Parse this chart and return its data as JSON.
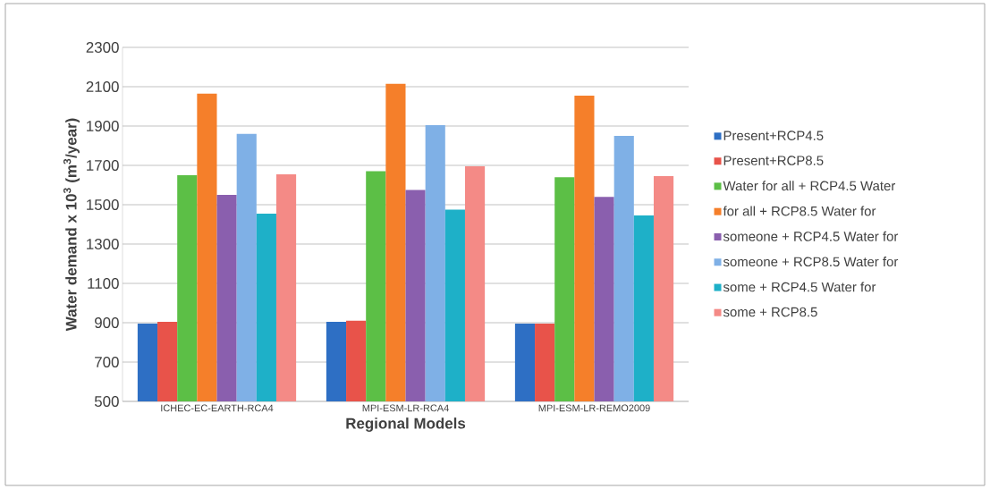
{
  "chart_data": {
    "type": "bar",
    "xlabel": "Regional Models",
    "ylabel": "Water demand  x 10$^{3}$ (m$^{3}$/year)",
    "categories": [
      "ICHEC-EC-EARTH-RCA4",
      "MPI-ESM-LR-RCA4",
      "MPI-ESM-LR-REMO2009"
    ],
    "series": [
      {
        "name": "Present+RCP4.5",
        "color": "#2e6fc4",
        "values": [
          895,
          905,
          895
        ]
      },
      {
        "name": "Present+RCP8.5",
        "color": "#e8534a",
        "values": [
          905,
          910,
          895
        ]
      },
      {
        "name": "Water for all + RCP4.5 Water",
        "color": "#5cbf46",
        "values": [
          1650,
          1670,
          1640
        ]
      },
      {
        "name": "for all + RCP8.5 Water for",
        "color": "#f57f2a",
        "values": [
          2065,
          2115,
          2055
        ]
      },
      {
        "name": "someone + RCP4.5 Water for",
        "color": "#8a5fae",
        "values": [
          1550,
          1575,
          1540
        ]
      },
      {
        "name": "someone + RCP8.5 Water for",
        "color": "#7fb0e6",
        "values": [
          1860,
          1905,
          1850
        ]
      },
      {
        "name": "some + RCP4.5 Water for",
        "color": "#1eb0c8",
        "values": [
          1455,
          1475,
          1445
        ]
      },
      {
        "name": "some + RCP8.5",
        "color": "#f48a86",
        "values": [
          1655,
          1695,
          1645
        ]
      }
    ],
    "ylim": [
      500,
      2300
    ],
    "yticks": [
      500,
      700,
      900,
      1100,
      1300,
      1500,
      1700,
      1900,
      2100,
      2300
    ],
    "grid": "y",
    "legend": "right"
  }
}
